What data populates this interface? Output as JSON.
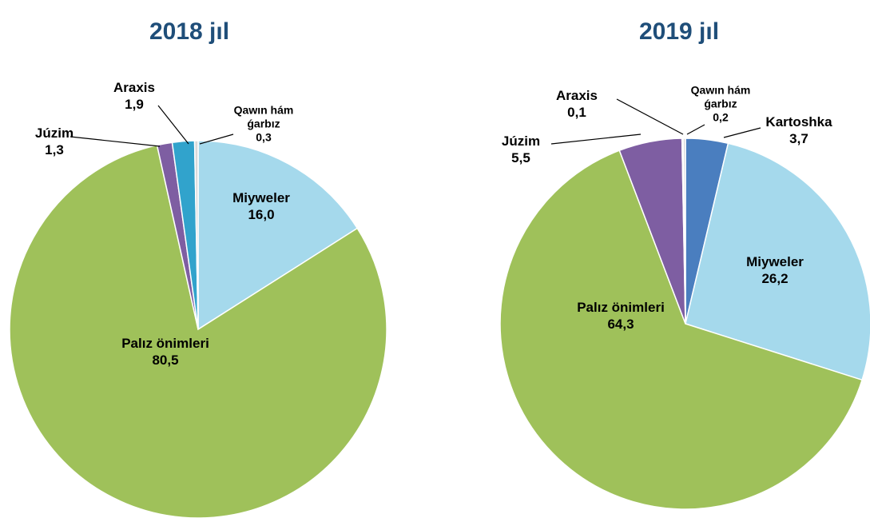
{
  "chart_data": [
    {
      "type": "pie",
      "title": "2018 jıl",
      "categories": [
        "Miyweler",
        "Palız önimleri",
        "Júzim",
        "Araxis",
        "Qawın hám ǵarbız"
      ],
      "values": [
        16.0,
        80.5,
        1.3,
        1.9,
        0.3
      ],
      "value_labels": [
        "16,0",
        "80,5",
        "1,3",
        "1,9",
        "0,3"
      ],
      "colors": [
        "#a5d9ec",
        "#9fc15a",
        "#7e5ea2",
        "#31a3cc",
        "#d9d9d9"
      ]
    },
    {
      "type": "pie",
      "title": "2019 jıl",
      "categories": [
        "Kartoshka",
        "Miyweler",
        "Palız önimleri",
        "Júzim",
        "Araxis",
        "Qawın hám ǵarbız"
      ],
      "values": [
        3.7,
        26.2,
        64.3,
        5.5,
        0.1,
        0.2
      ],
      "value_labels": [
        "3,7",
        "26,2",
        "64,3",
        "5,5",
        "0,1",
        "0,2"
      ],
      "colors": [
        "#4a7ebf",
        "#a5d9ec",
        "#9fc15a",
        "#7e5ea2",
        "#31a3cc",
        "#d9d9d9"
      ]
    }
  ]
}
